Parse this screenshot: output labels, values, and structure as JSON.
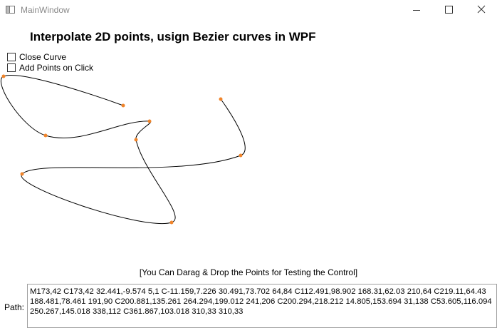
{
  "window": {
    "title": "MainWindow"
  },
  "heading": "Interpolate 2D points, usign Bezier curves in WPF",
  "options": [
    {
      "label": "Close Curve",
      "checked": false
    },
    {
      "label": "Add Points on Click",
      "checked": false
    }
  ],
  "hint": "[You Can Darag & Drop the Points for Testing the Control]",
  "path": {
    "label": "Path:",
    "value": "M173,42 C173,42 32.441,-9.574 5,1 C-11.159,7.226 30.491,73.702 64,84 C112.491,98.902 168.31,62.03 210,64 C219.11,64.43 188.481,78.461 191,90 C200.881,135.261 264.294,199.012 241,206 C200.294,218.212 14.805,153.694 31,138 C53.605,116.094 250.267,145.018 338,112 C361.867,103.018 310,33 310,33"
  }
}
